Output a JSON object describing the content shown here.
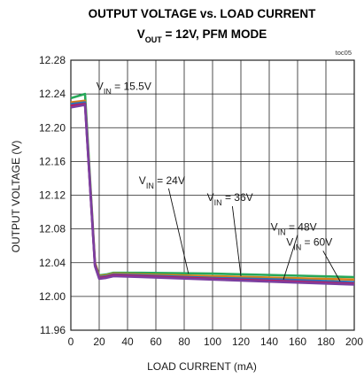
{
  "chart_data": {
    "type": "line",
    "title_line1": "OUTPUT VOLTAGE vs. LOAD CURRENT",
    "title_line2": {
      "main": "V",
      "sub": "OUT",
      "rest": " = 12V, PFM MODE"
    },
    "figure_code": "toc05",
    "xlabel": "LOAD CURRENT (mA)",
    "ylabel": "OUTPUT VOLTAGE (V)",
    "xlim": [
      0,
      200
    ],
    "ylim": [
      11.96,
      12.28
    ],
    "xticks": [
      "0",
      "20",
      "40",
      "60",
      "80",
      "100",
      "120",
      "140",
      "160",
      "180",
      "200"
    ],
    "yticks": [
      "11.96",
      "12.00",
      "12.04",
      "12.08",
      "12.12",
      "12.16",
      "12.20",
      "12.24",
      "12.28"
    ],
    "grid": true,
    "series": [
      {
        "name": "VIN = 15.5V",
        "color": "#27a85a",
        "x": [
          0,
          10,
          17,
          20,
          25,
          30,
          50,
          100,
          150,
          200
        ],
        "y": [
          12.235,
          12.24,
          12.04,
          12.025,
          12.026,
          12.028,
          12.028,
          12.027,
          12.025,
          12.023
        ]
      },
      {
        "name": "VIN = 24V",
        "color": "#d4811b",
        "x": [
          0,
          10,
          17,
          20,
          25,
          30,
          50,
          100,
          150,
          200
        ],
        "y": [
          12.23,
          12.232,
          12.04,
          12.024,
          12.025,
          12.027,
          12.026,
          12.024,
          12.022,
          12.02
        ]
      },
      {
        "name": "VIN = 36V",
        "color": "#2d6fb8",
        "x": [
          0,
          10,
          17,
          20,
          25,
          30,
          50,
          100,
          150,
          200
        ],
        "y": [
          12.228,
          12.23,
          12.038,
          12.023,
          12.024,
          12.026,
          12.025,
          12.022,
          12.02,
          12.017
        ]
      },
      {
        "name": "VIN = 48V",
        "color": "#c2185b",
        "x": [
          0,
          10,
          17,
          20,
          25,
          30,
          50,
          100,
          150,
          200
        ],
        "y": [
          12.226,
          12.228,
          12.037,
          12.022,
          12.023,
          12.025,
          12.024,
          12.021,
          12.018,
          12.015
        ]
      },
      {
        "name": "VIN = 60V",
        "color": "#7b3fa0",
        "x": [
          0,
          10,
          17,
          20,
          25,
          30,
          50,
          100,
          150,
          200
        ],
        "y": [
          12.224,
          12.227,
          12.036,
          12.021,
          12.022,
          12.024,
          12.023,
          12.02,
          12.017,
          12.014
        ]
      }
    ],
    "annotations": [
      {
        "pre": "V",
        "sub": "IN",
        "post": " = 15.5V"
      },
      {
        "pre": "V",
        "sub": "IN",
        "post": " = 24V"
      },
      {
        "pre": "V",
        "sub": "IN",
        "post": " = 36V"
      },
      {
        "pre": "V",
        "sub": "IN",
        "post": " = 48V"
      },
      {
        "pre": "V",
        "sub": "IN",
        "post": " = 60V"
      }
    ]
  }
}
